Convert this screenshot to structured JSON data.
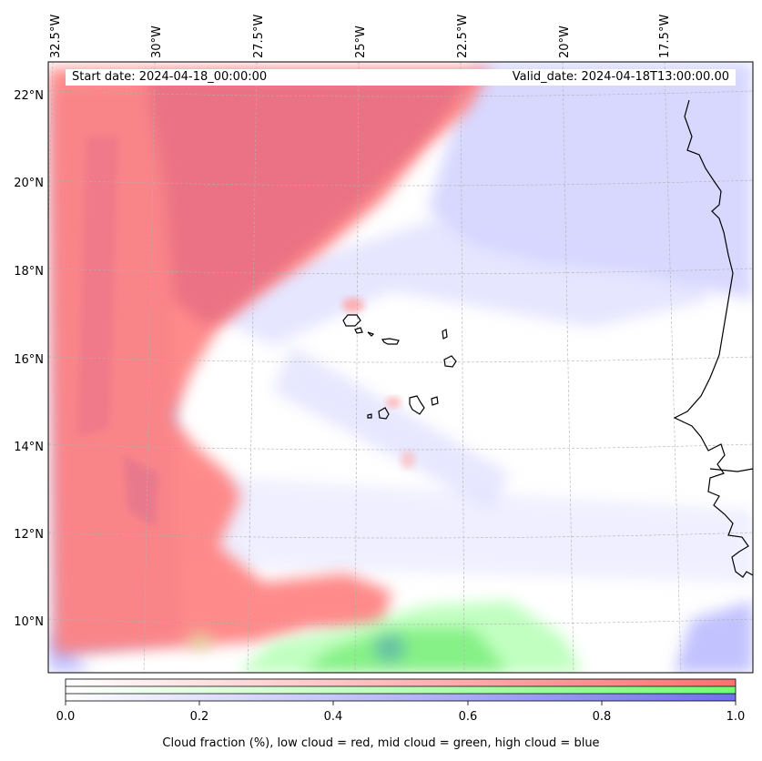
{
  "map": {
    "start_date": "Start date: 2024-04-18_00:00:00",
    "valid_date": "Valid_date: 2024-04-18T13:00:00.00",
    "lon_labels": [
      "32.5°W",
      "30°W",
      "27.5°W",
      "25°W",
      "22.5°W",
      "20°W",
      "17.5°W"
    ],
    "lat_labels": [
      "22°N",
      "20°N",
      "18°N",
      "16°N",
      "14°N",
      "12°N",
      "10°N"
    ],
    "layers": {
      "low_cloud_color": "#ff7f7f",
      "mid_cloud_color": "#7fff7f",
      "high_cloud_color": "#7f7fff"
    }
  },
  "colorbar": {
    "ticks": [
      "0.0",
      "0.2",
      "0.4",
      "0.6",
      "0.8",
      "1.0"
    ],
    "title": "Cloud fraction (%), low cloud = red, mid cloud = green, high cloud = blue"
  }
}
